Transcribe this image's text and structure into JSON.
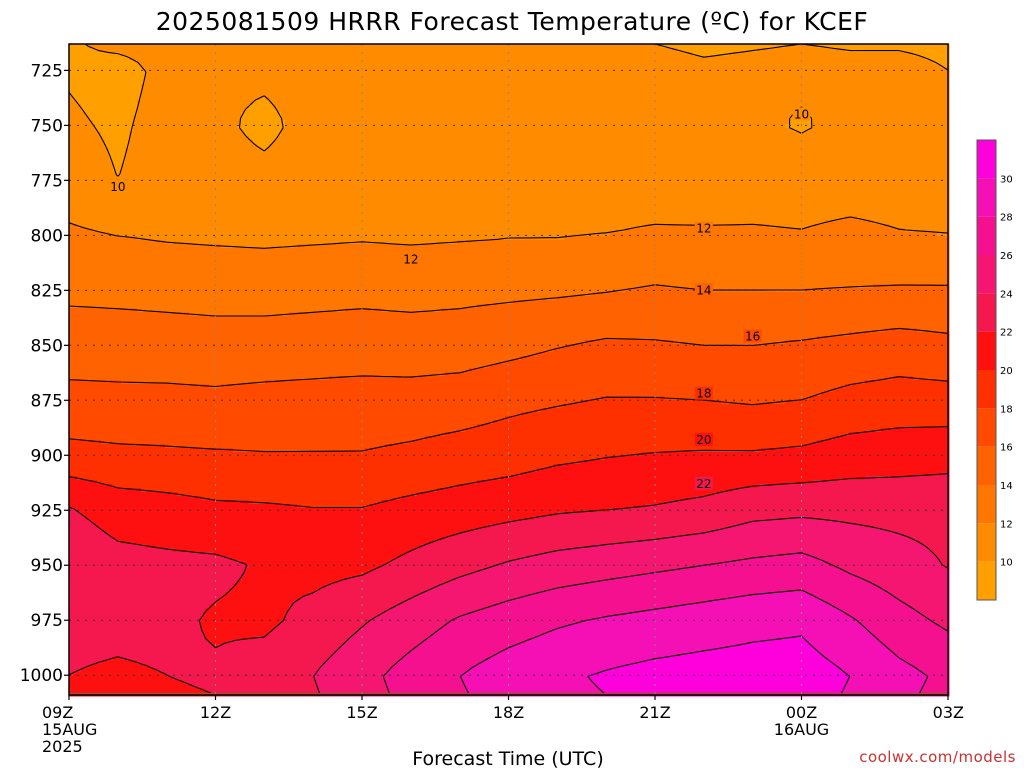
{
  "chart_data": {
    "type": "heatmap",
    "title": "2025081509 HRRR Forecast Temperature (ºC) for KCEF",
    "xlabel": "Forecast Time (UTC)",
    "ylabel": "",
    "x_ticks": [
      {
        "t": 0,
        "lines": [
          "09Z",
          "15AUG",
          "2025"
        ]
      },
      {
        "t": 3,
        "lines": [
          "12Z"
        ]
      },
      {
        "t": 6,
        "lines": [
          "15Z"
        ]
      },
      {
        "t": 9,
        "lines": [
          "18Z"
        ]
      },
      {
        "t": 12,
        "lines": [
          "21Z"
        ]
      },
      {
        "t": 15,
        "lines": [
          "00Z",
          "16AUG"
        ]
      },
      {
        "t": 18,
        "lines": [
          "03Z"
        ]
      }
    ],
    "xlim": [
      0,
      18
    ],
    "y_ticks": [
      725,
      750,
      775,
      800,
      825,
      850,
      875,
      900,
      925,
      950,
      975,
      1000
    ],
    "ylim": [
      713,
      1009
    ],
    "y_inverted": true,
    "ground_pressure": 1008,
    "grid": true,
    "contour_interval": 2,
    "fill_levels": [
      {
        "min": 8,
        "max": 10,
        "color": "#ff9f00"
      },
      {
        "min": 10,
        "max": 12,
        "color": "#ff8c00"
      },
      {
        "min": 12,
        "max": 14,
        "color": "#ff7700"
      },
      {
        "min": 14,
        "max": 16,
        "color": "#ff6200"
      },
      {
        "min": 16,
        "max": 18,
        "color": "#ff4a00"
      },
      {
        "min": 18,
        "max": 20,
        "color": "#ff3000"
      },
      {
        "min": 20,
        "max": 22,
        "color": "#ff1010"
      },
      {
        "min": 22,
        "max": 24,
        "color": "#f5184e"
      },
      {
        "min": 24,
        "max": 26,
        "color": "#f41670"
      },
      {
        "min": 26,
        "max": 28,
        "color": "#f51090"
      },
      {
        "min": 28,
        "max": 30,
        "color": "#f510b5"
      },
      {
        "min": 30,
        "max": 32,
        "color": "#ff00dd"
      }
    ],
    "ground_color": "#a0522d",
    "colorbar": {
      "ticks": [
        10,
        12,
        14,
        16,
        18,
        20,
        22,
        24,
        26,
        28,
        30
      ],
      "range": [
        8,
        32
      ]
    },
    "contour_labels": [
      {
        "value": "10",
        "t": 1.0,
        "p": 778
      },
      {
        "value": "10",
        "t": 15.0,
        "p": 745
      },
      {
        "value": "12",
        "t": 7.0,
        "p": 811
      },
      {
        "value": "12",
        "t": 13.0,
        "p": 797
      },
      {
        "value": "14",
        "t": 13.0,
        "p": 825
      },
      {
        "value": "16",
        "t": 14.0,
        "p": 846
      },
      {
        "value": "18",
        "t": 13.0,
        "p": 872
      },
      {
        "value": "20",
        "t": 13.0,
        "p": 893
      },
      {
        "value": "22",
        "t": 13.0,
        "p": 913
      }
    ],
    "temperature_grid": {
      "times": [
        0,
        1,
        2,
        3,
        4,
        5,
        6,
        7,
        8,
        9,
        10,
        11,
        12,
        13,
        14,
        15,
        16,
        17,
        18
      ],
      "pressures": [
        713,
        725,
        750,
        775,
        800,
        825,
        850,
        875,
        900,
        925,
        950,
        975,
        1000,
        1009
      ],
      "values": [
        [
          9.8,
          10.4,
          10.6,
          10.8,
          10.9,
          11.0,
          10.8,
          10.3,
          10.2,
          10.6,
          10.2,
          10.1,
          10.0,
          9.8,
          9.9,
          10.0,
          9.9,
          9.9,
          9.8
        ],
        [
          9.8,
          9.3,
          10.5,
          10.3,
          10.6,
          10.9,
          10.9,
          10.6,
          10.5,
          10.9,
          10.6,
          10.5,
          10.4,
          10.2,
          10.3,
          10.4,
          10.3,
          10.3,
          10.0
        ],
        [
          10.3,
          9.7,
          10.7,
          10.6,
          9.3,
          11.0,
          11.1,
          11.0,
          10.9,
          11.1,
          11.0,
          10.9,
          10.7,
          10.3,
          10.4,
          9.8,
          10.5,
          10.7,
          10.5
        ],
        [
          11.0,
          10.0,
          10.8,
          11.0,
          10.8,
          11.2,
          11.4,
          11.3,
          11.4,
          11.5,
          11.5,
          11.4,
          11.2,
          11.1,
          11.2,
          11.2,
          11.2,
          11.2,
          11.2
        ],
        [
          12.3,
          12.0,
          11.8,
          11.7,
          11.6,
          11.7,
          11.8,
          11.7,
          11.8,
          11.9,
          11.9,
          12.0,
          12.2,
          12.2,
          12.2,
          12.1,
          12.4,
          12.1,
          12.0
        ],
        [
          13.6,
          13.5,
          13.4,
          13.3,
          13.3,
          13.4,
          13.5,
          13.4,
          13.5,
          13.6,
          13.7,
          13.9,
          14.2,
          14.0,
          14.0,
          14.0,
          14.1,
          14.2,
          14.2
        ],
        [
          15.0,
          15.0,
          14.9,
          14.8,
          14.8,
          14.9,
          15.0,
          14.9,
          15.0,
          15.4,
          15.9,
          16.3,
          16.2,
          16.0,
          16.0,
          16.2,
          16.5,
          16.8,
          16.5
        ],
        [
          16.6,
          16.5,
          16.5,
          16.4,
          16.6,
          16.7,
          16.8,
          16.8,
          17.0,
          17.5,
          17.8,
          18.1,
          18.1,
          18.0,
          17.8,
          18.0,
          18.6,
          18.9,
          18.8
        ],
        [
          18.6,
          18.4,
          18.3,
          18.2,
          18.1,
          18.1,
          18.1,
          18.4,
          18.8,
          19.1,
          19.6,
          19.9,
          20.1,
          20.2,
          20.2,
          20.4,
          20.9,
          21.1,
          21.3
        ],
        [
          22.2,
          21.1,
          20.8,
          20.4,
          20.3,
          20.1,
          20.1,
          20.6,
          21.0,
          21.4,
          21.8,
          22.0,
          22.2,
          22.6,
          23.4,
          23.6,
          23.5,
          23.4,
          23.4
        ],
        [
          23.5,
          22.7,
          22.5,
          22.4,
          21.8,
          21.4,
          21.6,
          22.5,
          23.4,
          24.2,
          24.8,
          25.2,
          25.6,
          26.0,
          26.4,
          26.7,
          25.6,
          24.8,
          23.9
        ],
        [
          22.4,
          22.4,
          22.4,
          21.8,
          21.6,
          22.6,
          23.8,
          25.0,
          26.2,
          27.0,
          27.7,
          28.2,
          28.6,
          29.0,
          29.4,
          29.6,
          28.2,
          26.7,
          25.6
        ],
        [
          22.0,
          21.8,
          22.0,
          22.2,
          22.9,
          24.0,
          25.4,
          26.8,
          28.0,
          29.0,
          29.7,
          30.2,
          30.6,
          30.8,
          30.9,
          31.0,
          30.0,
          28.6,
          27.6
        ],
        [
          21.8,
          21.6,
          21.8,
          22.0,
          22.6,
          23.8,
          25.2,
          26.6,
          27.8,
          28.8,
          29.6,
          30.0,
          30.4,
          30.8,
          30.9,
          30.8,
          29.8,
          28.4,
          27.4
        ]
      ]
    }
  },
  "footer": {
    "credit": "coolwx.com/models"
  }
}
